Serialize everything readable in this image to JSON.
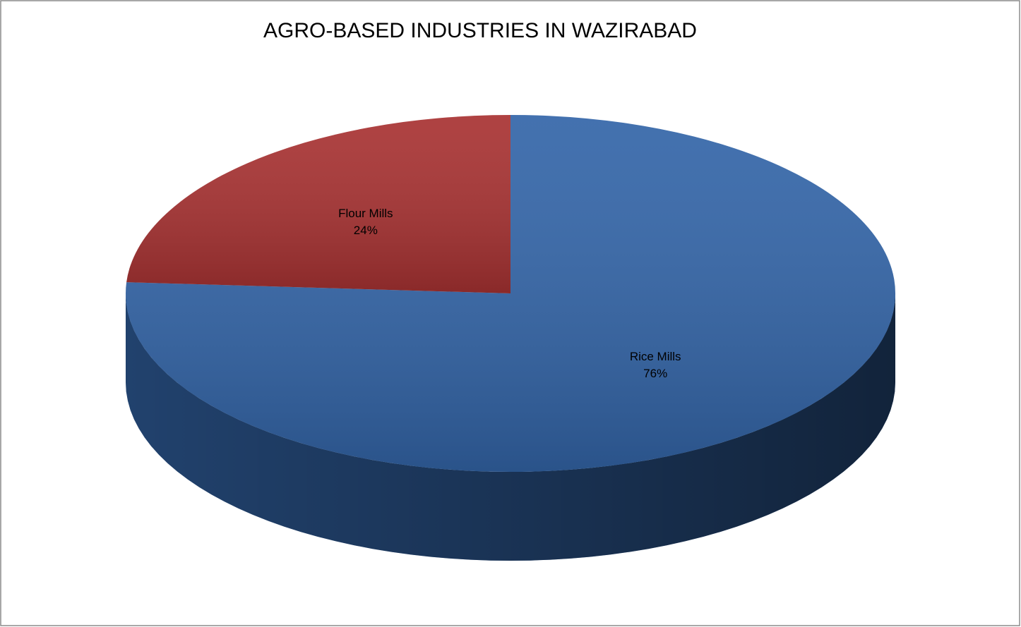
{
  "chart_data": {
    "type": "pie",
    "title": "AGRO-BASED INDUSTRIES IN WAZIRABAD",
    "categories": [
      "Rice Mills",
      "Flour Mills"
    ],
    "values": [
      76,
      24
    ],
    "value_labels": [
      "76%",
      "24%"
    ],
    "colors": [
      "#3365a8",
      "#a83232"
    ]
  }
}
